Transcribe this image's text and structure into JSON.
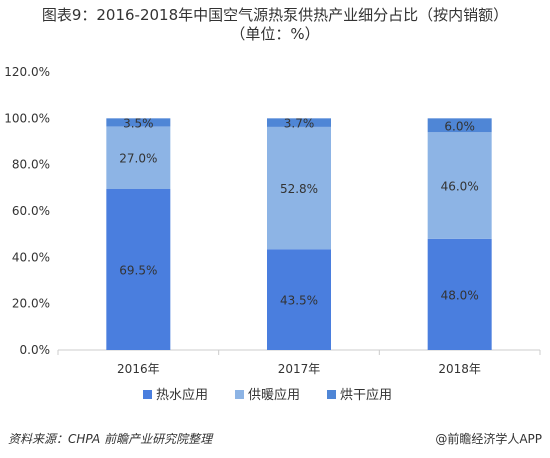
{
  "title": {
    "line1": "图表9：2016-2018年中国空气源热泵供热产业细分占比（按内销额）",
    "line2": "（单位：%）"
  },
  "colors": {
    "series": [
      "#4a7ede",
      "#8db4e5",
      "#4f86d6"
    ],
    "axis": "#cccccc",
    "text": "#333333"
  },
  "chart_data": {
    "type": "bar",
    "stacked": true,
    "categories": [
      "2016年",
      "2017年",
      "2018年"
    ],
    "series": [
      {
        "name": "热水应用",
        "values": [
          69.5,
          43.5,
          48.0
        ],
        "labels": [
          "69.5%",
          "43.5%",
          "48.0%"
        ]
      },
      {
        "name": "供暖应用",
        "values": [
          27.0,
          52.8,
          46.0
        ],
        "labels": [
          "27.0%",
          "52.8%",
          "46.0%"
        ]
      },
      {
        "name": "烘干应用",
        "values": [
          3.5,
          3.7,
          6.0
        ],
        "labels": [
          "3.5%",
          "3.7%",
          "6.0%"
        ]
      }
    ],
    "ylim": [
      0,
      120
    ],
    "yticks": [
      0,
      20,
      40,
      60,
      80,
      100,
      120
    ],
    "ytick_labels": [
      "0.0%",
      "20.0%",
      "40.0%",
      "60.0%",
      "80.0%",
      "100.0%",
      "120.0%"
    ],
    "legend_position": "bottom",
    "grid": false
  },
  "footer": {
    "source": "资料来源：CHPA  前瞻产业研究院整理",
    "brand_symbol": "@",
    "brand": "前瞻经济学人APP"
  }
}
